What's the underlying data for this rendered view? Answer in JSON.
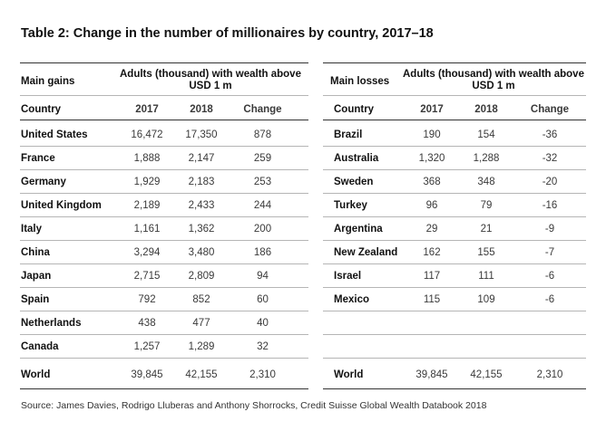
{
  "title": "Table 2: Change in the number of millionaires by country, 2017–18",
  "gains": {
    "section_label": "Main gains",
    "wealth_header": "Adults (thousand) with wealth above USD 1 m",
    "col_country": "Country",
    "col_2017": "2017",
    "col_2018": "2018",
    "col_change": "Change",
    "rows": [
      {
        "country": "United States",
        "y2017": "16,472",
        "y2018": "17,350",
        "change": "878"
      },
      {
        "country": "France",
        "y2017": "1,888",
        "y2018": "2,147",
        "change": "259"
      },
      {
        "country": "Germany",
        "y2017": "1,929",
        "y2018": "2,183",
        "change": "253"
      },
      {
        "country": "United Kingdom",
        "y2017": "2,189",
        "y2018": "2,433",
        "change": "244"
      },
      {
        "country": "Italy",
        "y2017": "1,161",
        "y2018": "1,362",
        "change": "200"
      },
      {
        "country": "China",
        "y2017": "3,294",
        "y2018": "3,480",
        "change": "186"
      },
      {
        "country": "Japan",
        "y2017": "2,715",
        "y2018": "2,809",
        "change": "94"
      },
      {
        "country": "Spain",
        "y2017": "792",
        "y2018": "852",
        "change": "60"
      },
      {
        "country": "Netherlands",
        "y2017": "438",
        "y2018": "477",
        "change": "40"
      },
      {
        "country": "Canada",
        "y2017": "1,257",
        "y2018": "1,289",
        "change": "32"
      }
    ],
    "world": {
      "country": "World",
      "y2017": "39,845",
      "y2018": "42,155",
      "change": "2,310"
    }
  },
  "losses": {
    "section_label": "Main losses",
    "wealth_header": "Adults (thousand) with wealth above USD 1 m",
    "col_country": "Country",
    "col_2017": "2017",
    "col_2018": "2018",
    "col_change": "Change",
    "rows": [
      {
        "country": "Brazil",
        "y2017": "190",
        "y2018": "154",
        "change": "-36"
      },
      {
        "country": "Australia",
        "y2017": "1,320",
        "y2018": "1,288",
        "change": "-32"
      },
      {
        "country": "Sweden",
        "y2017": "368",
        "y2018": "348",
        "change": "-20"
      },
      {
        "country": "Turkey",
        "y2017": "96",
        "y2018": "79",
        "change": "-16"
      },
      {
        "country": "Argentina",
        "y2017": "29",
        "y2018": "21",
        "change": "-9"
      },
      {
        "country": "New Zealand",
        "y2017": "162",
        "y2018": "155",
        "change": "-7"
      },
      {
        "country": "Israel",
        "y2017": "117",
        "y2018": "111",
        "change": "-6"
      },
      {
        "country": "Mexico",
        "y2017": "115",
        "y2018": "109",
        "change": "-6"
      }
    ],
    "world": {
      "country": "World",
      "y2017": "39,845",
      "y2018": "42,155",
      "change": "2,310"
    }
  },
  "source": "Source: James Davies, Rodrigo Lluberas and Anthony Shorrocks, Credit Suisse Global Wealth Databook 2018"
}
